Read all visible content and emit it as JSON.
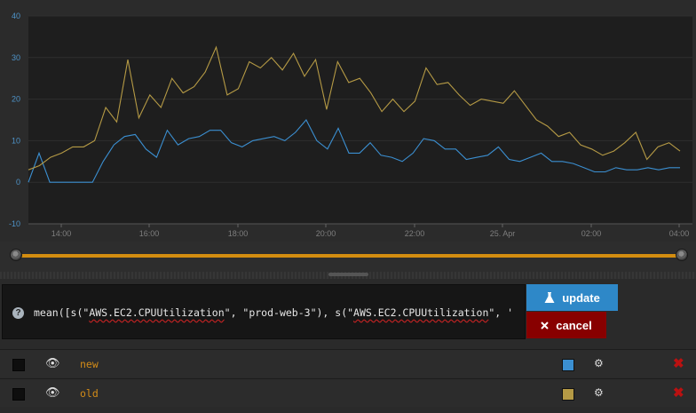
{
  "colors": {
    "series_new": "#3b8fd1",
    "series_old": "#b59a45",
    "update_bg": "#2e88c8",
    "cancel_bg": "#800000",
    "timeline": "#d38d10"
  },
  "chart_data": {
    "type": "line",
    "ylim": [
      -10,
      40
    ],
    "yticks": [
      "40",
      "30",
      "20",
      "10",
      "0",
      "-10"
    ],
    "xtick_labels": [
      "14:00",
      "16:00",
      "18:00",
      "20:00",
      "22:00",
      "25. Apr",
      "02:00",
      "04:00"
    ],
    "grid": true,
    "series": [
      {
        "name": "new",
        "color": "#3b8fd1",
        "values": [
          0,
          7,
          0,
          0,
          0,
          0,
          0,
          5,
          9,
          11,
          11.5,
          8,
          6,
          12.5,
          9,
          10.5,
          11,
          12.5,
          12.5,
          9.5,
          8.5,
          10,
          10.5,
          11,
          10,
          12,
          15,
          10,
          8,
          13,
          7,
          7,
          9.5,
          6.5,
          6,
          5,
          7,
          10.5,
          10,
          8,
          8,
          5.5,
          6,
          6.5,
          8.5,
          5.5,
          5,
          6,
          7,
          5,
          5,
          4.5,
          3.5,
          2.5,
          2.5,
          3.5,
          3,
          3,
          3.5,
          3,
          3.5,
          3.5
        ]
      },
      {
        "name": "old",
        "color": "#b59a45",
        "values": [
          3,
          4,
          6,
          7,
          8.5,
          8.5,
          10,
          18,
          14.5,
          29.5,
          15.5,
          21,
          18,
          25,
          21.5,
          23,
          26.5,
          32.5,
          21,
          22.5,
          29,
          27.5,
          30,
          27,
          31,
          25.5,
          29.5,
          17.5,
          29,
          24,
          25,
          21.5,
          17,
          20,
          17,
          19.5,
          27.5,
          23.5,
          24,
          21,
          18.5,
          20,
          19.5,
          19,
          22,
          18.5,
          15,
          13.5,
          11,
          12,
          9,
          8,
          6.5,
          7.5,
          9.5,
          12,
          5.5,
          8.5,
          9.5,
          7.5
        ]
      }
    ]
  },
  "timeline": {
    "start_fraction": 0,
    "end_fraction": 1
  },
  "query": {
    "help_label": "?",
    "parts": [
      "mean([s(\"",
      "AWS.EC2.CPUUtilization",
      "\", \"prod-web-3\"), s(\"",
      "AWS.EC2.CPUUtilization",
      "\", '"
    ]
  },
  "buttons": {
    "update_label": "update",
    "cancel_label": "cancel",
    "update_icon": "flask-icon",
    "cancel_icon": "close-icon"
  },
  "series_rows": [
    {
      "name": "new",
      "visible": true,
      "color": "#3b8fd1"
    },
    {
      "name": "old",
      "visible": true,
      "color": "#b59a45"
    }
  ]
}
